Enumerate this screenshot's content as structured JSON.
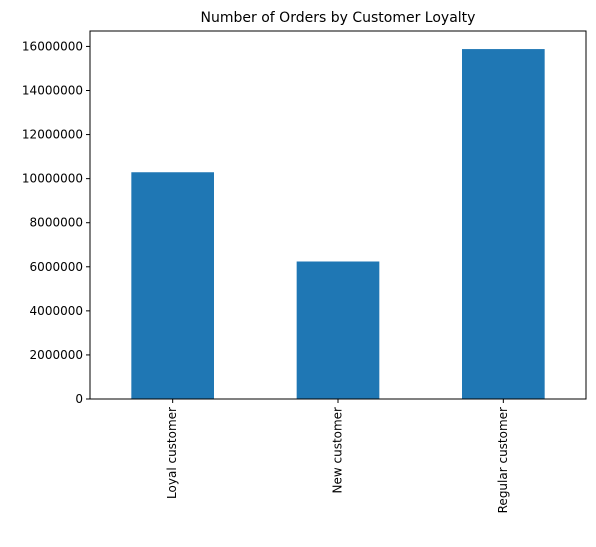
{
  "chart_data": {
    "type": "bar",
    "title": "Number of Orders by Customer Loyalty",
    "xlabel": "",
    "ylabel": "",
    "categories": [
      "Loyal customer",
      "New customer",
      "Regular customer"
    ],
    "values": [
      10290000,
      6240000,
      15880000
    ],
    "ylim": [
      0,
      16700000
    ],
    "yticks": [
      "0",
      "2000000",
      "4000000",
      "6000000",
      "8000000",
      "10000000",
      "12000000",
      "14000000",
      "16000000"
    ],
    "grid": false,
    "legend": "none",
    "bar_color": "#1f77b4",
    "x_tick_rotation": "vertical"
  }
}
